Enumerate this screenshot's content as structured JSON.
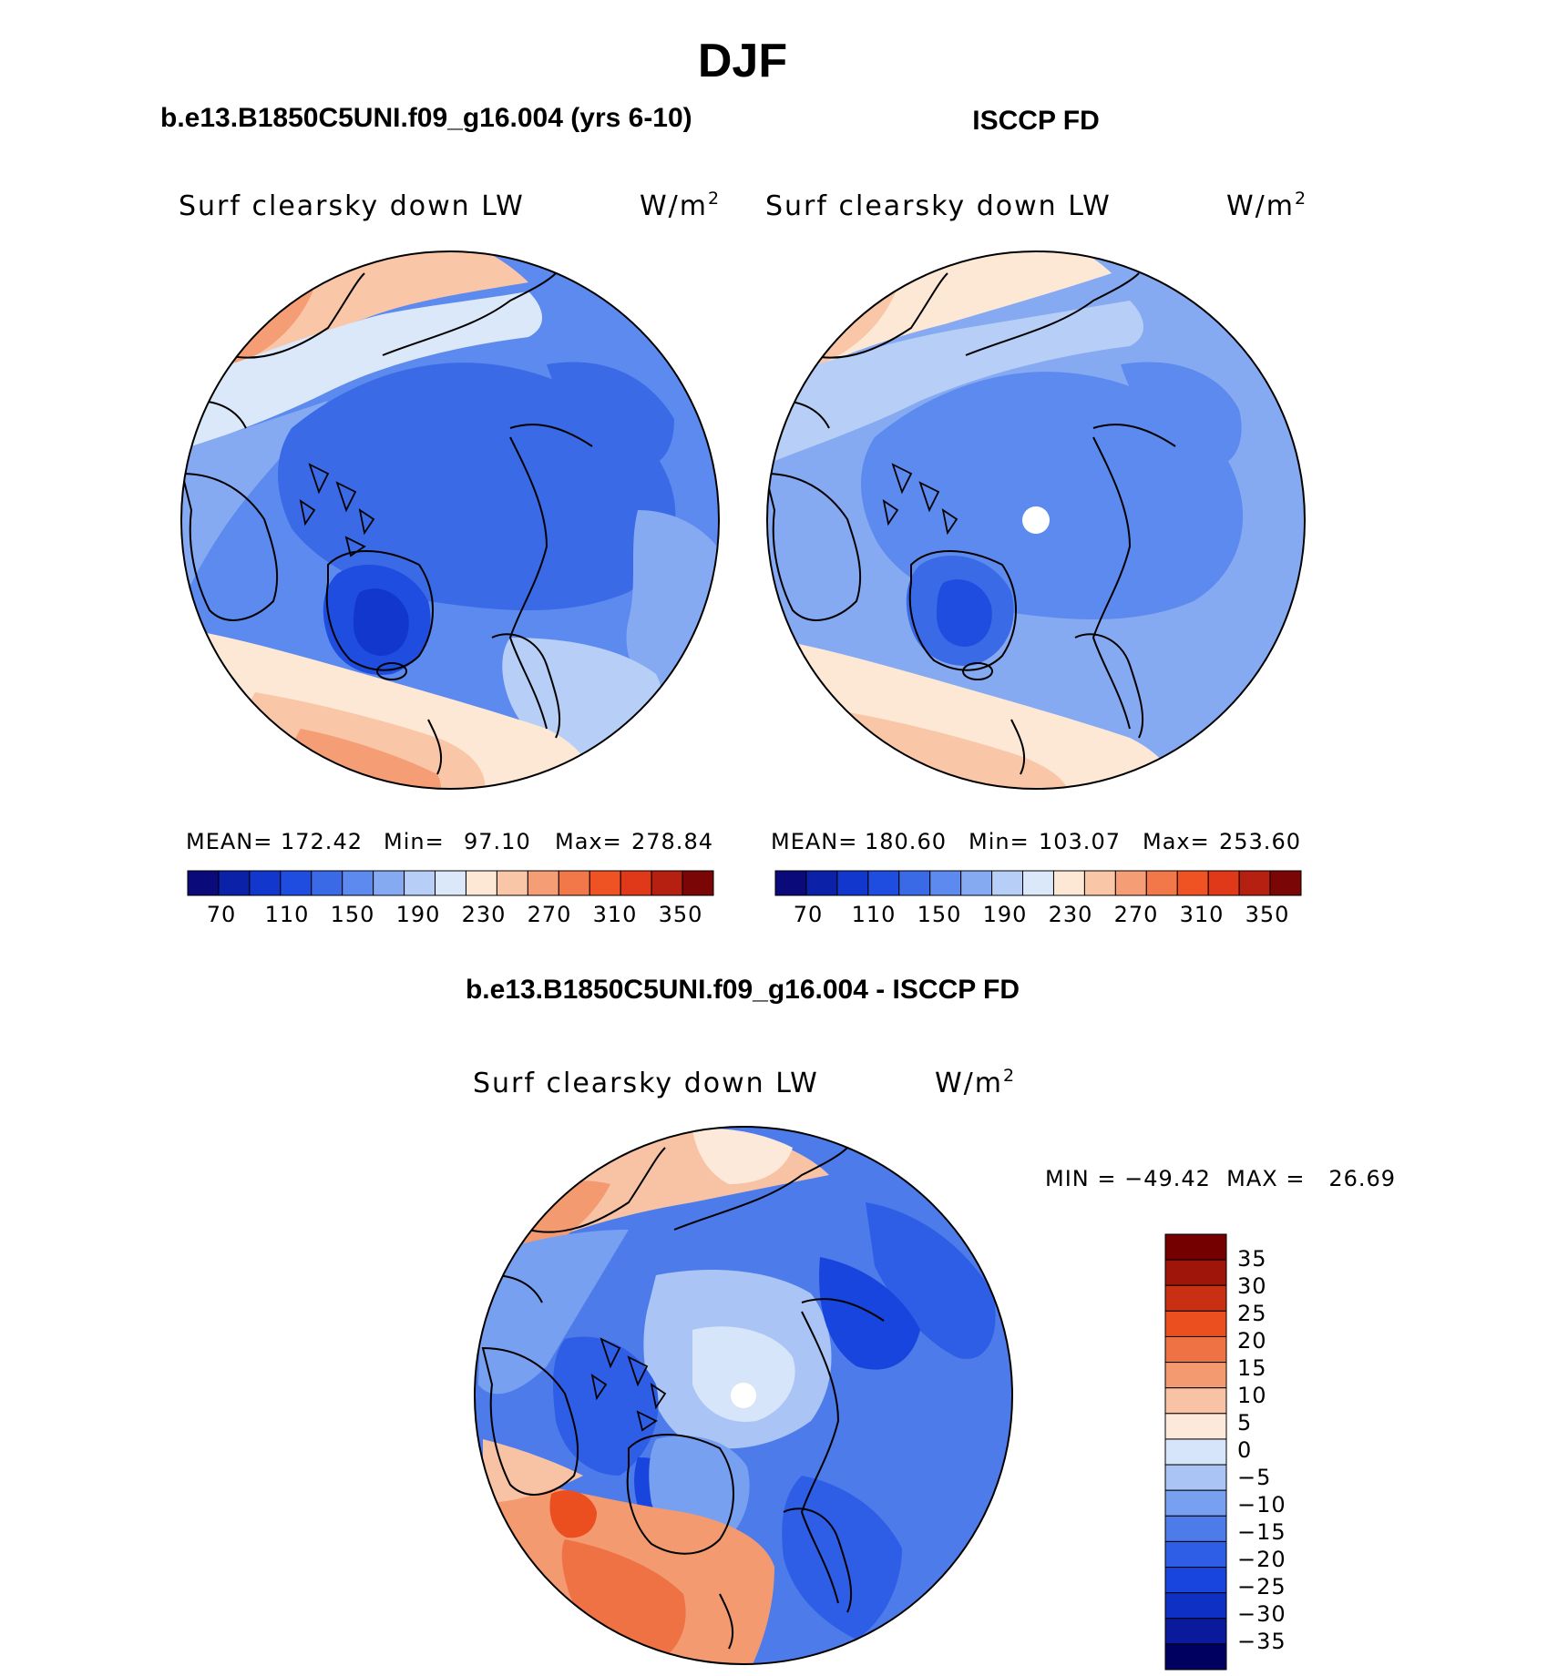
{
  "page": {
    "season": "DJF",
    "left_title": "b.e13.B1850C5UNI.f09_g16.004 (yrs 6-10)",
    "right_title": "ISCCP FD",
    "diff_title": "b.e13.B1850C5UNI.f09_g16.004 - ISCCP FD"
  },
  "panels": [
    {
      "id": "model",
      "variable": "Surf clearsky down LW",
      "units_base": "W/m",
      "units_exp": "2",
      "stats": {
        "mean_label": "MEAN=",
        "mean": "172.42",
        "min_label": "Min=",
        "min": "97.10",
        "max_label": "Max=",
        "max": "278.84"
      },
      "colorbar_labels": [
        "70",
        "110",
        "150",
        "190",
        "230",
        "270",
        "310",
        "350"
      ],
      "pole_hole": false
    },
    {
      "id": "obs",
      "variable": "Surf clearsky down LW",
      "units_base": "W/m",
      "units_exp": "2",
      "stats": {
        "mean_label": "MEAN=",
        "mean": "180.60",
        "min_label": "Min=",
        "min": "103.07",
        "max_label": "Max=",
        "max": "253.60"
      },
      "colorbar_labels": [
        "70",
        "110",
        "150",
        "190",
        "230",
        "270",
        "310",
        "350"
      ],
      "pole_hole": true
    }
  ],
  "diff_panel": {
    "variable": "Surf clearsky down LW",
    "units_base": "W/m",
    "units_exp": "2",
    "minmax_text": "MIN = −49.42  MAX =   26.69",
    "colorbar_labels": [
      "35",
      "30",
      "25",
      "20",
      "15",
      "10",
      "5",
      "0",
      "−5",
      "−10",
      "−15",
      "−20",
      "−25",
      "−30",
      "−35"
    ],
    "pole_hole": true
  },
  "colors": {
    "abs_scale": [
      "#0a0a7a",
      "#0b22a8",
      "#1237cc",
      "#1f4de0",
      "#3a6ae6",
      "#5c8aee",
      "#86aaf2",
      "#b7cff7",
      "#dbe8fa",
      "#fde8d6",
      "#f9c6a8",
      "#f59e76",
      "#f2784a",
      "#ef5323",
      "#e0391a",
      "#b52010",
      "#7a0606"
    ],
    "diff_scale": [
      "#000060",
      "#0a1a9c",
      "#0e30c4",
      "#1745de",
      "#2e5ee6",
      "#4d7bea",
      "#78a0f0",
      "#a9c4f5",
      "#d6e5fa",
      "#fde9da",
      "#f8c3a4",
      "#f39a70",
      "#ef7244",
      "#eb4e1f",
      "#c92f12",
      "#a0150a",
      "#740000"
    ],
    "coast": "#000000"
  }
}
